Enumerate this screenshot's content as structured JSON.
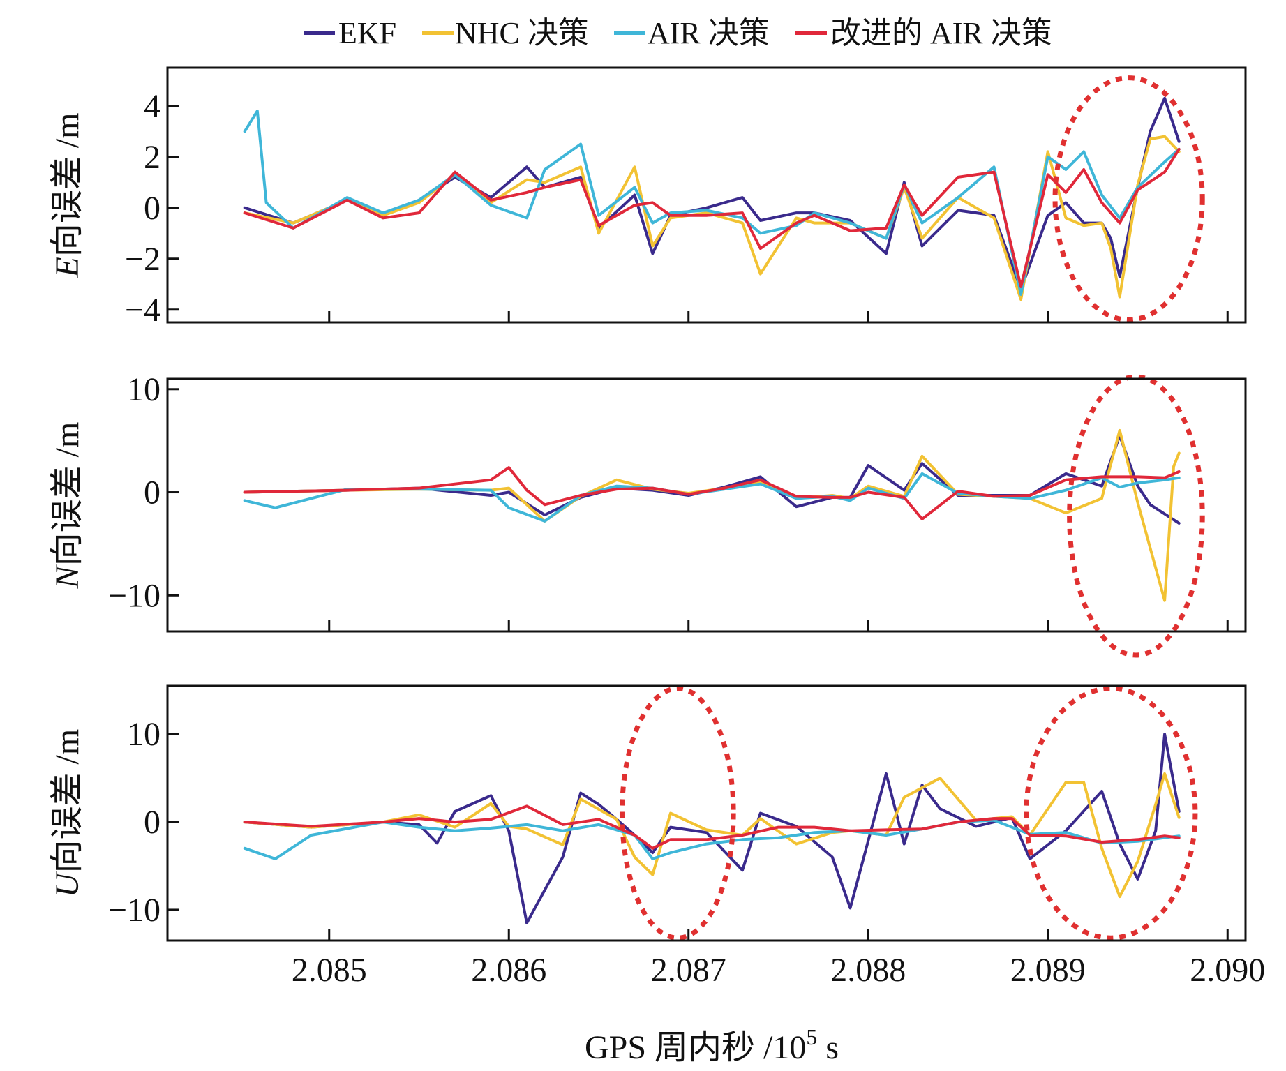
{
  "chart_data": {
    "type": "line",
    "xlabel": "GPS 周内秒 /10",
    "xlabel_sup": "5",
    "xlabel_unit": " s",
    "xlim": [
      2.0841,
      2.0901
    ],
    "xticks": [
      "2.085",
      "2.086",
      "2.087",
      "2.088",
      "2.089",
      "2.090"
    ],
    "xtick_values": [
      2.085,
      2.086,
      2.087,
      2.088,
      2.089,
      2.09
    ],
    "grid": false,
    "legend_position": "top-center",
    "colors": {
      "EKF": "#3a2a8c",
      "NHC 决策": "#f2c233",
      "AIR 决策": "#3fb6d8",
      "改进的 AIR 决策": "#e0283a"
    },
    "legend": [
      "EKF",
      "NHC 决策",
      "AIR 决策",
      "改进的 AIR 决策"
    ],
    "panels": [
      {
        "id": "E",
        "ylabel_var": "E",
        "ylabel_text": "向误差 /m",
        "ylim": [
          -4.5,
          5.5
        ],
        "yticks": [
          "4",
          "2",
          "0",
          "−2",
          "−4"
        ],
        "ytick_values": [
          4,
          2,
          0,
          -2,
          -4
        ],
        "highlights": [
          {
            "cx": 2.08945,
            "cy": 0.35,
            "rx": 0.00041,
            "ry": 4.75
          }
        ],
        "series": [
          {
            "name": "EKF",
            "x": [
              2.08453,
              2.0848,
              2.0851,
              2.0853,
              2.0855,
              2.0857,
              2.0859,
              2.0861,
              2.0862,
              2.0864,
              2.0865,
              2.0867,
              2.0868,
              2.0869,
              2.0871,
              2.0873,
              2.0874,
              2.0876,
              2.0877,
              2.0879,
              2.0881,
              2.0882,
              2.0883,
              2.0885,
              2.0887,
              2.08885,
              2.089,
              2.0891,
              2.0892,
              2.0893,
              2.08935,
              2.0894,
              2.0895,
              2.08957,
              2.08965,
              2.08973
            ],
            "y": [
              0,
              -0.6,
              0.3,
              -0.3,
              0.3,
              1.2,
              0.4,
              1.6,
              0.8,
              1.2,
              -0.8,
              0.5,
              -1.8,
              -0.3,
              0,
              0.4,
              -0.5,
              -0.2,
              -0.2,
              -0.5,
              -1.8,
              1,
              -1.5,
              -0.1,
              -0.3,
              -3.2,
              -0.3,
              0.2,
              -0.6,
              -0.6,
              -1.2,
              -2.7,
              0.8,
              3,
              4.3,
              2.6
            ]
          },
          {
            "name": "NHC 决策",
            "x": [
              2.08453,
              2.0848,
              2.0851,
              2.0853,
              2.0855,
              2.0857,
              2.0859,
              2.0861,
              2.0862,
              2.0864,
              2.0865,
              2.0867,
              2.0868,
              2.0869,
              2.0871,
              2.0873,
              2.0874,
              2.0876,
              2.0877,
              2.0879,
              2.0881,
              2.0882,
              2.0883,
              2.0885,
              2.0887,
              2.08885,
              2.089,
              2.0891,
              2.0892,
              2.0893,
              2.08935,
              2.0894,
              2.0895,
              2.08957,
              2.08965,
              2.08973
            ],
            "y": [
              -0.2,
              -0.6,
              0.3,
              -0.3,
              0.2,
              1.3,
              0.2,
              1.1,
              1,
              1.6,
              -1,
              1.6,
              -1.5,
              -0.4,
              -0.2,
              -0.6,
              -2.6,
              -0.4,
              -0.6,
              -0.6,
              -1.2,
              0.8,
              -1.2,
              0.4,
              -0.4,
              -3.6,
              2.2,
              -0.4,
              -0.7,
              -0.6,
              -1.6,
              -3.5,
              0.9,
              2.7,
              2.8,
              2.2
            ]
          },
          {
            "name": "AIR 决策",
            "x": [
              2.08453,
              2.0846,
              2.08465,
              2.0848,
              2.0851,
              2.0853,
              2.0855,
              2.0857,
              2.0859,
              2.0861,
              2.0862,
              2.0864,
              2.0865,
              2.0867,
              2.0868,
              2.0869,
              2.0871,
              2.0873,
              2.0874,
              2.0876,
              2.0877,
              2.0879,
              2.0881,
              2.0882,
              2.0883,
              2.0885,
              2.0887,
              2.08885,
              2.089,
              2.0891,
              2.0892,
              2.0893,
              2.0894,
              2.0895,
              2.08965,
              2.08973
            ],
            "y": [
              3,
              3.8,
              0.2,
              -0.8,
              0.4,
              -0.2,
              0.3,
              1.3,
              0.1,
              -0.4,
              1.5,
              2.5,
              -0.3,
              0.8,
              -0.6,
              -0.2,
              -0.1,
              -0.4,
              -1,
              -0.7,
              -0.2,
              -0.6,
              -1.2,
              0.9,
              -0.6,
              0.4,
              1.6,
              -3.4,
              2,
              1.5,
              2.2,
              0.5,
              -0.4,
              0.8,
              1.8,
              2.3
            ]
          },
          {
            "name": "改进的 AIR 决策",
            "x": [
              2.08453,
              2.0848,
              2.0851,
              2.0853,
              2.0855,
              2.0857,
              2.0859,
              2.0861,
              2.0862,
              2.0864,
              2.0865,
              2.0867,
              2.0868,
              2.0869,
              2.0871,
              2.0873,
              2.0874,
              2.0876,
              2.0877,
              2.0879,
              2.0881,
              2.0882,
              2.0883,
              2.0885,
              2.0887,
              2.08885,
              2.089,
              2.0891,
              2.0892,
              2.0893,
              2.0894,
              2.0895,
              2.08965,
              2.08973
            ],
            "y": [
              -0.2,
              -0.8,
              0.3,
              -0.4,
              -0.2,
              1.4,
              0.3,
              0.6,
              0.8,
              1.1,
              -0.7,
              0.1,
              0.2,
              -0.3,
              -0.3,
              -0.2,
              -1.6,
              -0.6,
              -0.3,
              -0.9,
              -0.8,
              0.9,
              -0.3,
              1.2,
              1.4,
              -3.1,
              1.3,
              0.6,
              1.5,
              0.2,
              -0.6,
              0.7,
              1.4,
              2.3
            ]
          }
        ]
      },
      {
        "id": "N",
        "ylabel_var": "N",
        "ylabel_text": "向误差 /m",
        "ylim": [
          -13.5,
          11
        ],
        "yticks": [
          "10",
          "0",
          "−10"
        ],
        "ytick_values": [
          10,
          0,
          -10
        ],
        "highlights": [
          {
            "cx": 2.08949,
            "cy": -2.3,
            "rx": 0.00037,
            "ry": 13.5
          }
        ],
        "series": [
          {
            "name": "EKF",
            "x": [
              2.08453,
              2.0851,
              2.0855,
              2.0859,
              2.086,
              2.0862,
              2.0864,
              2.0866,
              2.0868,
              2.087,
              2.0872,
              2.0874,
              2.0876,
              2.0878,
              2.0879,
              2.088,
              2.0882,
              2.0883,
              2.0885,
              2.0887,
              2.0889,
              2.0891,
              2.0893,
              2.0894,
              2.0895,
              2.08957,
              2.08973
            ],
            "y": [
              0,
              0.2,
              0.4,
              -0.3,
              0,
              -2.2,
              -0.5,
              0.4,
              0.2,
              -0.3,
              0.5,
              1.5,
              -1.4,
              -0.5,
              -0.5,
              2.6,
              0.2,
              2.8,
              -0.3,
              -0.3,
              -0.3,
              1.8,
              0.6,
              5.5,
              0.6,
              -1.2,
              -3
            ]
          },
          {
            "name": "NHC 决策",
            "x": [
              2.08453,
              2.0851,
              2.0855,
              2.0859,
              2.086,
              2.0862,
              2.0864,
              2.0866,
              2.0868,
              2.087,
              2.0872,
              2.0874,
              2.0876,
              2.0878,
              2.0879,
              2.088,
              2.0882,
              2.0883,
              2.0885,
              2.0887,
              2.0889,
              2.0891,
              2.0893,
              2.0894,
              2.0895,
              2.08965,
              2.0897,
              2.08973
            ],
            "y": [
              0,
              0.2,
              0.3,
              0.2,
              0.4,
              -2.8,
              -0.4,
              1.2,
              0.3,
              -0.1,
              0.4,
              1,
              -0.6,
              -0.3,
              -0.6,
              0.6,
              -0.4,
              3.5,
              -0.2,
              -0.4,
              -0.6,
              -2,
              -0.6,
              6,
              -1,
              -10.5,
              2.5,
              3.8
            ]
          },
          {
            "name": "AIR 决策",
            "x": [
              2.08453,
              2.0847,
              2.0851,
              2.0855,
              2.0859,
              2.086,
              2.0862,
              2.0864,
              2.0866,
              2.0868,
              2.087,
              2.0872,
              2.0874,
              2.0876,
              2.0878,
              2.0879,
              2.088,
              2.0882,
              2.0883,
              2.0885,
              2.0887,
              2.0889,
              2.0891,
              2.0893,
              2.0894,
              2.0895,
              2.08965,
              2.08973
            ],
            "y": [
              -0.8,
              -1.5,
              0.3,
              0.3,
              0.2,
              -1.5,
              -2.8,
              -0.3,
              0.6,
              0.4,
              -0.2,
              0.3,
              0.8,
              -0.6,
              -0.4,
              -0.8,
              0.4,
              -0.6,
              1.8,
              -0.1,
              -0.4,
              -0.6,
              0.2,
              1.4,
              0.5,
              0.9,
              1.2,
              1.4
            ]
          },
          {
            "name": "改进的 AIR 决策",
            "x": [
              2.08453,
              2.0851,
              2.0855,
              2.0859,
              2.086,
              2.0861,
              2.0862,
              2.0864,
              2.0866,
              2.0868,
              2.087,
              2.0872,
              2.0874,
              2.0876,
              2.0878,
              2.0879,
              2.088,
              2.0882,
              2.0883,
              2.0885,
              2.0887,
              2.0889,
              2.0891,
              2.0893,
              2.0895,
              2.08965,
              2.08973
            ],
            "y": [
              0,
              0.2,
              0.4,
              1.2,
              2.4,
              0.2,
              -1.2,
              -0.3,
              0.3,
              0.4,
              -0.2,
              0.4,
              1.2,
              -0.4,
              -0.5,
              -0.5,
              0,
              -0.5,
              -2.6,
              0.1,
              -0.4,
              -0.3,
              1.2,
              1.5,
              1.5,
              1.4,
              2
            ]
          }
        ]
      },
      {
        "id": "U",
        "ylabel_var": "U",
        "ylabel_text": "向误差 /m",
        "ylim": [
          -13.5,
          15.5
        ],
        "yticks": [
          "10",
          "0",
          "−10"
        ],
        "ytick_values": [
          10,
          0,
          -10
        ],
        "highlights": [
          {
            "cx": 2.08694,
            "cy": 1.0,
            "rx": 0.00031,
            "ry": 14.2
          },
          {
            "cx": 2.08935,
            "cy": 1.0,
            "rx": 0.00047,
            "ry": 14.2
          }
        ],
        "series": [
          {
            "name": "EKF",
            "x": [
              2.08453,
              2.0849,
              2.0853,
              2.0855,
              2.0856,
              2.0857,
              2.0859,
              2.086,
              2.0861,
              2.0863,
              2.0864,
              2.0865,
              2.0866,
              2.0867,
              2.0868,
              2.0869,
              2.0871,
              2.0873,
              2.0874,
              2.0876,
              2.0878,
              2.0879,
              2.0881,
              2.0882,
              2.0883,
              2.0884,
              2.0886,
              2.0888,
              2.0889,
              2.0891,
              2.0893,
              2.0894,
              2.0895,
              2.0896,
              2.08965,
              2.08973
            ],
            "y": [
              0,
              -0.6,
              0,
              -0.3,
              -2.4,
              1.2,
              3,
              -1,
              -11.5,
              -4,
              3.3,
              2,
              0.3,
              -1.5,
              -3.5,
              -0.6,
              -1.2,
              -5.5,
              1,
              -0.5,
              -4,
              -9.8,
              5.5,
              -2.5,
              4.2,
              1.5,
              -0.5,
              0.5,
              -4.2,
              -1,
              3.5,
              -2.5,
              -6.5,
              -1,
              10,
              1.2
            ]
          },
          {
            "name": "NHC 决策",
            "x": [
              2.08453,
              2.0849,
              2.0853,
              2.0855,
              2.0857,
              2.0859,
              2.086,
              2.0861,
              2.0863,
              2.0864,
              2.0866,
              2.0867,
              2.0868,
              2.0869,
              2.0871,
              2.0873,
              2.0874,
              2.0876,
              2.0878,
              2.0879,
              2.0881,
              2.0882,
              2.0884,
              2.0886,
              2.0888,
              2.0889,
              2.0891,
              2.0892,
              2.0893,
              2.0894,
              2.0895,
              2.0896,
              2.08965,
              2.08973
            ],
            "y": [
              0,
              -0.6,
              0,
              0.8,
              -0.6,
              2.1,
              -0.5,
              -0.8,
              -2.6,
              2.6,
              0.3,
              -4,
              -6,
              1,
              -0.9,
              -1.5,
              0.4,
              -2.5,
              -1.2,
              -1,
              -1.5,
              2.8,
              5,
              0.2,
              0.6,
              -1.5,
              4.5,
              4.5,
              -3,
              -8.5,
              -4.5,
              2,
              5.5,
              0.5
            ]
          },
          {
            "name": "AIR 决策",
            "x": [
              2.08453,
              2.0847,
              2.0849,
              2.0853,
              2.0855,
              2.0857,
              2.0859,
              2.0861,
              2.0863,
              2.0865,
              2.0867,
              2.0868,
              2.0869,
              2.0871,
              2.0873,
              2.0875,
              2.0877,
              2.0879,
              2.0881,
              2.0883,
              2.0885,
              2.0887,
              2.0889,
              2.0891,
              2.0893,
              2.0895,
              2.08965,
              2.08973
            ],
            "y": [
              -3,
              -4.2,
              -1.5,
              0,
              -0.6,
              -1,
              -0.7,
              -0.3,
              -1,
              -0.3,
              -1.5,
              -4.2,
              -3.5,
              -2.5,
              -2,
              -1.8,
              -1.2,
              -1,
              -1.5,
              -0.8,
              0,
              0.2,
              -1.4,
              -1.2,
              -2.4,
              -2.2,
              -1.8,
              -1.6
            ]
          },
          {
            "name": "改进的 AIR 决策",
            "x": [
              2.08453,
              2.0849,
              2.0853,
              2.0855,
              2.0857,
              2.0859,
              2.0861,
              2.0863,
              2.0865,
              2.0867,
              2.0868,
              2.0869,
              2.0871,
              2.0873,
              2.0875,
              2.0877,
              2.0879,
              2.0881,
              2.0883,
              2.0885,
              2.0887,
              2.0888,
              2.0889,
              2.0891,
              2.0893,
              2.0895,
              2.08965,
              2.08973
            ],
            "y": [
              0,
              -0.5,
              0,
              0.4,
              0,
              0.3,
              1.8,
              -0.3,
              0.3,
              -1.5,
              -3,
              -2,
              -2,
              -1.5,
              -0.6,
              -0.6,
              -1,
              -0.9,
              -0.8,
              0,
              0.4,
              0.4,
              -1.5,
              -1.6,
              -2.3,
              -2,
              -1.6,
              -1.8
            ]
          }
        ]
      }
    ]
  }
}
